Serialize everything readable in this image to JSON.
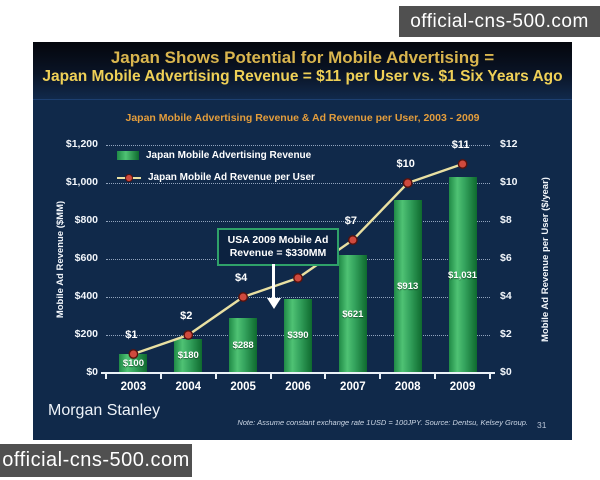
{
  "watermark": {
    "text": "official-cns-500.com"
  },
  "slide": {
    "title_line1": "Japan Shows Potential for Mobile Advertising =",
    "title_line2": "Japan Mobile Advertising Revenue = $11 per User vs. $1 Six Years Ago",
    "brand": "Morgan Stanley",
    "footnote": "Note: Assume constant exchange rate 1USD = 100JPY. Source: Dentsu, Kelsey Group.",
    "page_number": "31"
  },
  "chart_data": {
    "type": "bar",
    "title": "Japan Mobile Advertising Revenue & Ad Revenue per User, 2003 - 2009",
    "categories": [
      "2003",
      "2004",
      "2005",
      "2006",
      "2007",
      "2008",
      "2009"
    ],
    "series": [
      {
        "name": "Japan Mobile Advertising Revenue",
        "kind": "bar",
        "axis": "left",
        "values": [
          100,
          180,
          288,
          390,
          621,
          913,
          1031
        ],
        "labels": [
          "$100",
          "$180",
          "$288",
          "$390",
          "$621",
          "$913",
          "$1,031"
        ],
        "color": "#2fa45a"
      },
      {
        "name": "Japan Mobile Ad Revenue per User",
        "kind": "line",
        "axis": "right",
        "values": [
          1,
          2,
          4,
          5,
          7,
          10,
          11
        ],
        "labels": [
          "$1",
          "$2",
          "$4",
          "$5",
          "$7",
          "$10",
          "$11"
        ],
        "color": "#e9e0a2",
        "marker_color": "#cf4a3e"
      }
    ],
    "left_axis": {
      "label": "Mobile Ad Revenue ($MM)",
      "ticks": [
        "$1,200",
        "$1,000",
        "$800",
        "$600",
        "$400",
        "$200",
        "$0"
      ],
      "min": 0,
      "max": 1200
    },
    "right_axis": {
      "label": "Mobile Ad Revenue per User ($/year)",
      "ticks": [
        "$12",
        "$10",
        "$8",
        "$6",
        "$4",
        "$2",
        "$0"
      ],
      "min": 0,
      "max": 12
    },
    "grid": "horizontal-dotted",
    "legend_position": "top-left",
    "annotation": {
      "text_line1": "USA 2009 Mobile Ad",
      "text_line2": "Revenue = $330MM",
      "points_to_value": 330
    }
  }
}
